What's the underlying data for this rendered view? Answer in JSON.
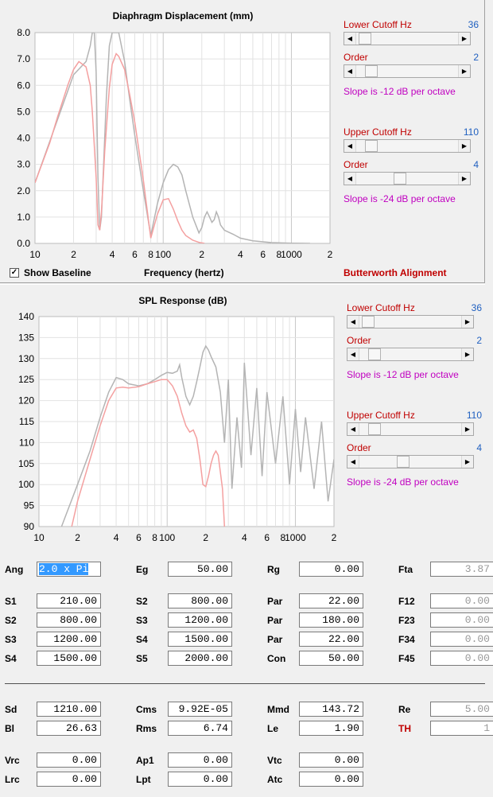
{
  "chart1": {
    "title": "Diaphragm Displacement (mm)",
    "xlabel": "Frequency (hertz)",
    "y_ticks": [
      "8.0",
      "7.0",
      "6.0",
      "5.0",
      "4.0",
      "3.0",
      "2.0",
      "1.0",
      "0.0"
    ],
    "x_tick_labels": [
      {
        "f": 10,
        "t": "10"
      },
      {
        "f": 20,
        "t": "2"
      },
      {
        "f": 40,
        "t": "4"
      },
      {
        "f": 60,
        "t": "6"
      },
      {
        "f": 80,
        "t": "8"
      },
      {
        "f": 100,
        "t": "100"
      },
      {
        "f": 200,
        "t": "2"
      },
      {
        "f": 400,
        "t": "4"
      },
      {
        "f": 600,
        "t": "6"
      },
      {
        "f": 800,
        "t": "8"
      },
      {
        "f": 1000,
        "t": "1000"
      },
      {
        "f": 2000,
        "t": "2"
      }
    ],
    "show_baseline_label": "Show Baseline",
    "show_baseline_checked": true,
    "controls": {
      "lower_label": "Lower Cutoff  Hz",
      "lower_value": "36",
      "lower_pos": 0.03,
      "lower_order_label": "Order",
      "lower_order_value": "2",
      "lower_order_pos": 0.1,
      "lower_slope": "Slope is -12 dB per octave",
      "upper_label": "Upper Cutoff  Hz",
      "upper_value": "110",
      "upper_pos": 0.1,
      "upper_order_label": "Order",
      "upper_order_value": "4",
      "upper_order_pos": 0.42,
      "upper_slope": "Slope is -24 dB per octave"
    },
    "alignment": "Butterworth Alignment"
  },
  "chart2": {
    "title": "SPL Response (dB)",
    "y_ticks": [
      "140",
      "135",
      "130",
      "125",
      "120",
      "115",
      "110",
      "105",
      "100",
      "95",
      "90"
    ],
    "x_tick_labels": [
      {
        "f": 10,
        "t": "10"
      },
      {
        "f": 20,
        "t": "2"
      },
      {
        "f": 40,
        "t": "4"
      },
      {
        "f": 60,
        "t": "6"
      },
      {
        "f": 80,
        "t": "8"
      },
      {
        "f": 100,
        "t": "100"
      },
      {
        "f": 200,
        "t": "2"
      },
      {
        "f": 400,
        "t": "4"
      },
      {
        "f": 600,
        "t": "6"
      },
      {
        "f": 800,
        "t": "8"
      },
      {
        "f": 1000,
        "t": "1000"
      },
      {
        "f": 2000,
        "t": "2"
      }
    ],
    "controls": {
      "lower_label": "Lower Cutoff  Hz",
      "lower_value": "36",
      "lower_pos": 0.03,
      "lower_order_label": "Order",
      "lower_order_value": "2",
      "lower_order_pos": 0.1,
      "lower_slope": "Slope is -12 dB per octave",
      "upper_label": "Upper Cutoff  Hz",
      "upper_value": "110",
      "upper_pos": 0.1,
      "upper_order_label": "Order",
      "upper_order_value": "4",
      "upper_order_pos": 0.42,
      "upper_slope": "Slope is -24 dB per octave"
    }
  },
  "params": {
    "Ang": "2.0 x Pi",
    "Eg": "50.00",
    "Rg": "0.00",
    "Fta": "3.87",
    "S1": "210.00",
    "S2b": "800.00",
    "Par1": "22.00",
    "F12": "0.00",
    "S2": "800.00",
    "S3b": "1200.00",
    "Par2": "180.00",
    "F23": "0.00",
    "S3": "1200.00",
    "S4b": "1500.00",
    "Par3": "22.00",
    "F34": "0.00",
    "S4": "1500.00",
    "S5": "2000.00",
    "Con": "50.00",
    "F45": "0.00",
    "Sd": "1210.00",
    "Cms": "9.92E-05",
    "Mmd": "143.72",
    "Re": "5.00",
    "Bl": "26.63",
    "Rms": "6.74",
    "Le": "1.90",
    "TH": "1",
    "Vrc": "0.00",
    "Ap1": "0.00",
    "Vtc": "0.00",
    "Lrc": "0.00",
    "Lpt": "0.00",
    "Atc": "0.00"
  },
  "labels": {
    "Ang": "Ang",
    "Eg": "Eg",
    "Rg": "Rg",
    "Fta": "Fta",
    "S1": "S1",
    "S2b": "S2",
    "Par1": "Par",
    "F12": "F12",
    "S2": "S2",
    "S3b": "S3",
    "Par2": "Par",
    "F23": "F23",
    "S3": "S3",
    "S4b": "S4",
    "Par3": "Par",
    "F34": "F34",
    "S4": "S4",
    "S5": "S5",
    "Con": "Con",
    "F45": "F45",
    "Sd": "Sd",
    "Cms": "Cms",
    "Mmd": "Mmd",
    "Re": "Re",
    "Bl": "Bl",
    "Rms": "Rms",
    "Le": "Le",
    "TH": "TH",
    "Vrc": "Vrc",
    "Ap1": "Ap1",
    "Vtc": "Vtc",
    "Lrc": "Lrc",
    "Lpt": "Lpt",
    "Atc": "Atc"
  },
  "chart_data": [
    {
      "type": "line",
      "title": "Diaphragm Displacement (mm)",
      "xlabel": "Frequency (hertz)",
      "xscale": "log",
      "xlim": [
        10,
        2000
      ],
      "ylim": [
        0,
        8
      ],
      "grid": true,
      "series": [
        {
          "color": "#b4b4b4",
          "x": [
            10,
            20,
            25,
            27,
            28,
            29,
            30,
            31,
            32,
            33,
            36,
            38,
            40,
            45,
            50,
            55,
            60,
            70,
            80,
            90,
            100,
            110,
            120,
            130,
            140,
            150,
            170,
            190,
            200,
            210,
            220,
            230,
            240,
            250,
            260,
            270,
            280,
            300,
            350,
            400,
            500,
            700,
            1000,
            1400
          ],
          "y": [
            2.3,
            6.4,
            6.9,
            7.5,
            8.0,
            8.0,
            6.5,
            2.5,
            0.5,
            1.0,
            5.5,
            7.5,
            8.0,
            8.0,
            6.9,
            5.4,
            4.1,
            2.0,
            0.3,
            1.5,
            2.3,
            2.8,
            3.0,
            2.9,
            2.6,
            2.0,
            1.0,
            0.4,
            0.6,
            1.0,
            1.2,
            1.0,
            0.8,
            0.9,
            1.2,
            1.0,
            0.7,
            0.5,
            0.35,
            0.2,
            0.1,
            0.03,
            0.01,
            0.0
          ]
        },
        {
          "color": "#f4a0a0",
          "x": [
            10,
            13,
            15,
            18,
            20,
            22,
            25,
            27,
            28,
            30,
            31,
            32,
            33,
            35,
            38,
            40,
            43,
            45,
            50,
            55,
            60,
            70,
            80,
            90,
            100,
            110,
            120,
            130,
            140,
            150,
            170,
            190,
            210
          ],
          "y": [
            2.3,
            3.8,
            4.8,
            6.0,
            6.6,
            6.9,
            6.7,
            6.0,
            5.0,
            2.5,
            0.7,
            0.5,
            1.2,
            3.5,
            5.9,
            6.8,
            7.2,
            7.1,
            6.6,
            5.6,
            4.6,
            2.4,
            0.2,
            1.1,
            1.65,
            1.7,
            1.3,
            0.85,
            0.5,
            0.3,
            0.12,
            0.04,
            0.0
          ]
        }
      ]
    },
    {
      "type": "line",
      "title": "SPL Response (dB)",
      "xscale": "log",
      "xlim": [
        10,
        2000
      ],
      "ylim": [
        90,
        140
      ],
      "grid": true,
      "series": [
        {
          "color": "#b4b4b4",
          "x": [
            15,
            20,
            25,
            30,
            35,
            40,
            45,
            50,
            60,
            70,
            80,
            90,
            100,
            110,
            120,
            125,
            130,
            140,
            150,
            160,
            170,
            180,
            190,
            200,
            210,
            220,
            240,
            260,
            280,
            300,
            320,
            350,
            380,
            400,
            450,
            500,
            550,
            600,
            700,
            800,
            900,
            1000,
            1100,
            1200,
            1400,
            1600,
            1800,
            2000
          ],
          "y": [
            90,
            100,
            108,
            116,
            122,
            125.5,
            125,
            124,
            123.5,
            124,
            125,
            126,
            126.7,
            126.5,
            127,
            128.5,
            125.5,
            121,
            119,
            121,
            124.5,
            128,
            131.5,
            133,
            132,
            130.5,
            128,
            122,
            110,
            125,
            99,
            116,
            104,
            129,
            107,
            123,
            102,
            122,
            105,
            121,
            100,
            118,
            103,
            116,
            99,
            115,
            96,
            106
          ]
        },
        {
          "color": "#f4a0a0",
          "x": [
            18,
            20,
            25,
            30,
            35,
            40,
            45,
            50,
            60,
            70,
            80,
            90,
            100,
            110,
            120,
            130,
            140,
            150,
            160,
            170,
            180,
            190,
            200,
            210,
            220,
            230,
            240,
            250,
            260,
            270,
            280
          ],
          "y": [
            90,
            96,
            106,
            114,
            120,
            123,
            123.2,
            123,
            123.3,
            124,
            124.5,
            125,
            125,
            123.5,
            121,
            117,
            114,
            112.5,
            113,
            111,
            106,
            100,
            99.5,
            102,
            105,
            107,
            108,
            107,
            103,
            99,
            90
          ]
        }
      ]
    }
  ]
}
